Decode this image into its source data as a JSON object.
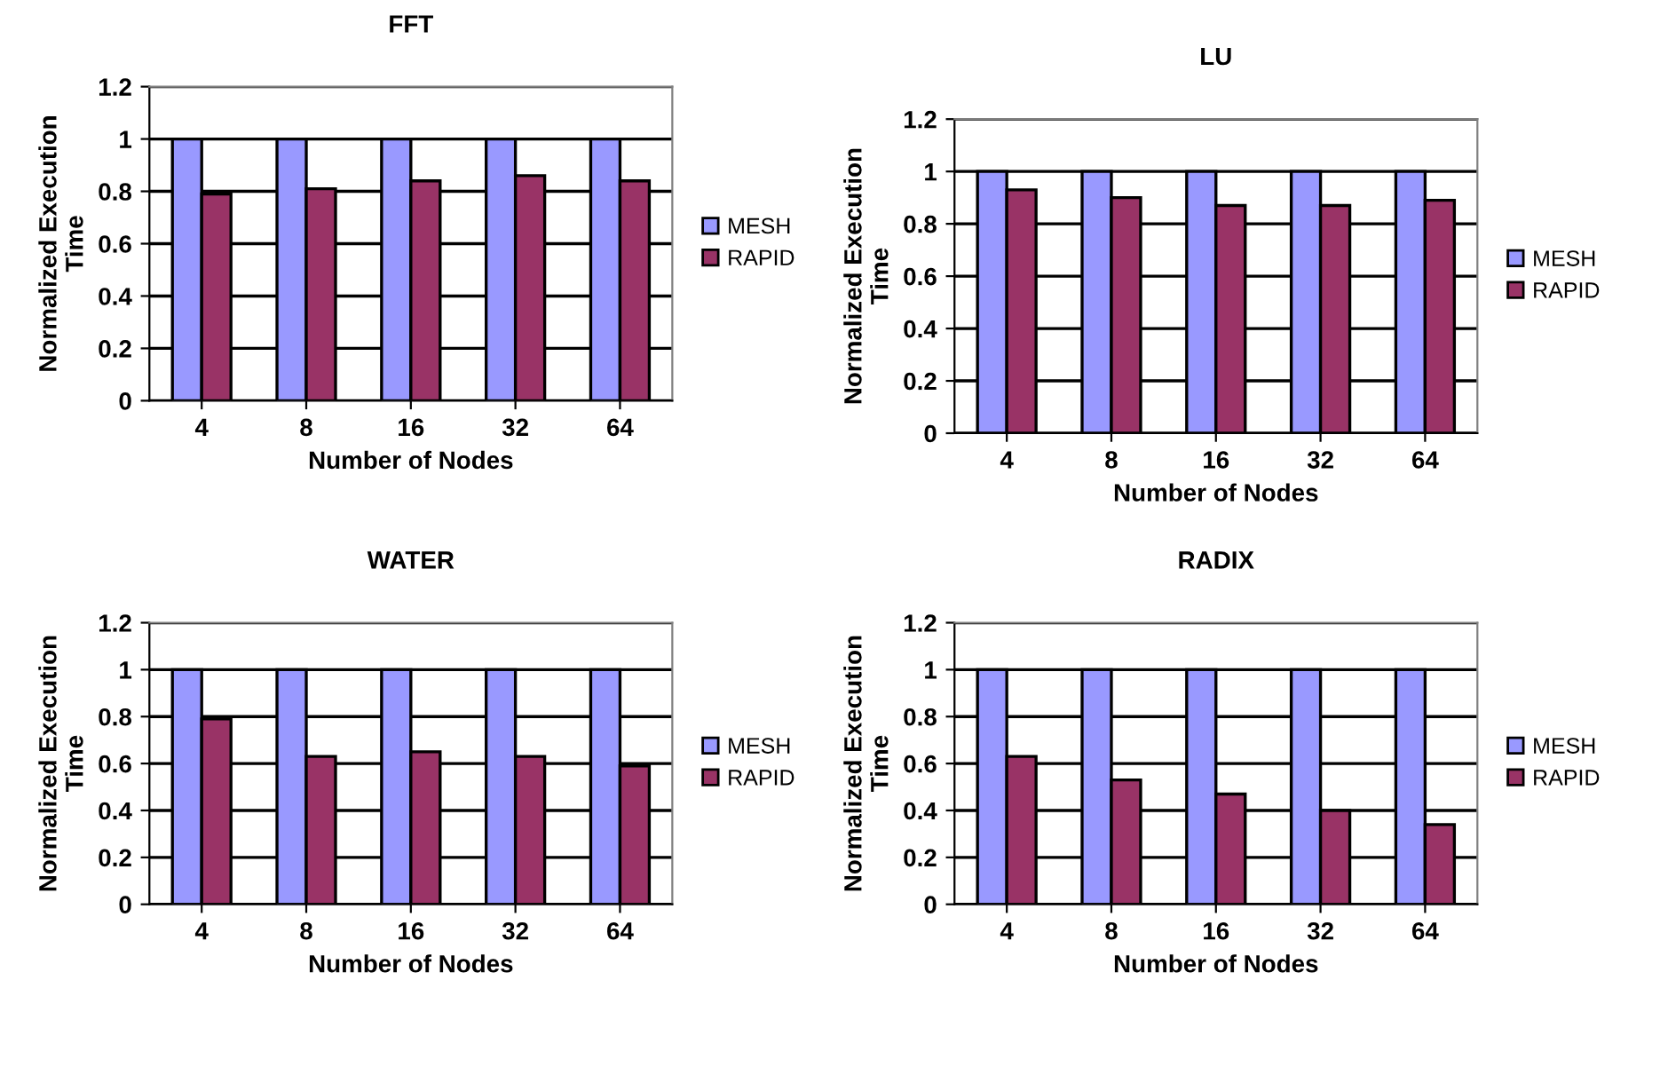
{
  "chart_data": [
    {
      "type": "bar",
      "title": "FFT",
      "xlabel": "Number of Nodes",
      "ylabel": "Normalized Execution\nTime",
      "categories": [
        "4",
        "8",
        "16",
        "32",
        "64"
      ],
      "series": [
        {
          "name": "MESH",
          "color": "#9999ff",
          "values": [
            1,
            1,
            1,
            1,
            1
          ]
        },
        {
          "name": "RAPID",
          "color": "#993366",
          "values": [
            0.79,
            0.81,
            0.84,
            0.86,
            0.84
          ]
        }
      ],
      "ylim": [
        0,
        1.2
      ],
      "yticks": [
        0,
        0.2,
        0.4,
        0.6,
        0.8,
        1,
        1.2
      ],
      "grid": "y",
      "legend": "right"
    },
    {
      "type": "bar",
      "title": "LU",
      "xlabel": "Number of Nodes",
      "ylabel": "Normalized Execution\nTime",
      "categories": [
        "4",
        "8",
        "16",
        "32",
        "64"
      ],
      "series": [
        {
          "name": "MESH",
          "color": "#9999ff",
          "values": [
            1,
            1,
            1,
            1,
            1
          ]
        },
        {
          "name": "RAPID",
          "color": "#993366",
          "values": [
            0.93,
            0.9,
            0.87,
            0.87,
            0.89
          ]
        }
      ],
      "ylim": [
        0,
        1.2
      ],
      "yticks": [
        0,
        0.2,
        0.4,
        0.6,
        0.8,
        1,
        1.2
      ],
      "grid": "y",
      "legend": "right"
    },
    {
      "type": "bar",
      "title": "WATER",
      "xlabel": "Number of Nodes",
      "ylabel": "Normalized Execution\nTime",
      "categories": [
        "4",
        "8",
        "16",
        "32",
        "64"
      ],
      "series": [
        {
          "name": "MESH",
          "color": "#9999ff",
          "values": [
            1,
            1,
            1,
            1,
            1
          ]
        },
        {
          "name": "RAPID",
          "color": "#993366",
          "values": [
            0.79,
            0.63,
            0.65,
            0.63,
            0.59
          ]
        }
      ],
      "ylim": [
        0,
        1.2
      ],
      "yticks": [
        0,
        0.2,
        0.4,
        0.6,
        0.8,
        1,
        1.2
      ],
      "grid": "y",
      "legend": "right"
    },
    {
      "type": "bar",
      "title": "RADIX",
      "xlabel": "Number of Nodes",
      "ylabel": "Normalized Execution\nTime",
      "categories": [
        "4",
        "8",
        "16",
        "32",
        "64"
      ],
      "series": [
        {
          "name": "MESH",
          "color": "#9999ff",
          "values": [
            1,
            1,
            1,
            1,
            1
          ]
        },
        {
          "name": "RAPID",
          "color": "#993366",
          "values": [
            0.63,
            0.53,
            0.47,
            0.4,
            0.34
          ]
        }
      ],
      "ylim": [
        0,
        1.2
      ],
      "yticks": [
        0,
        0.2,
        0.4,
        0.6,
        0.8,
        1,
        1.2
      ],
      "grid": "y",
      "legend": "right"
    }
  ]
}
